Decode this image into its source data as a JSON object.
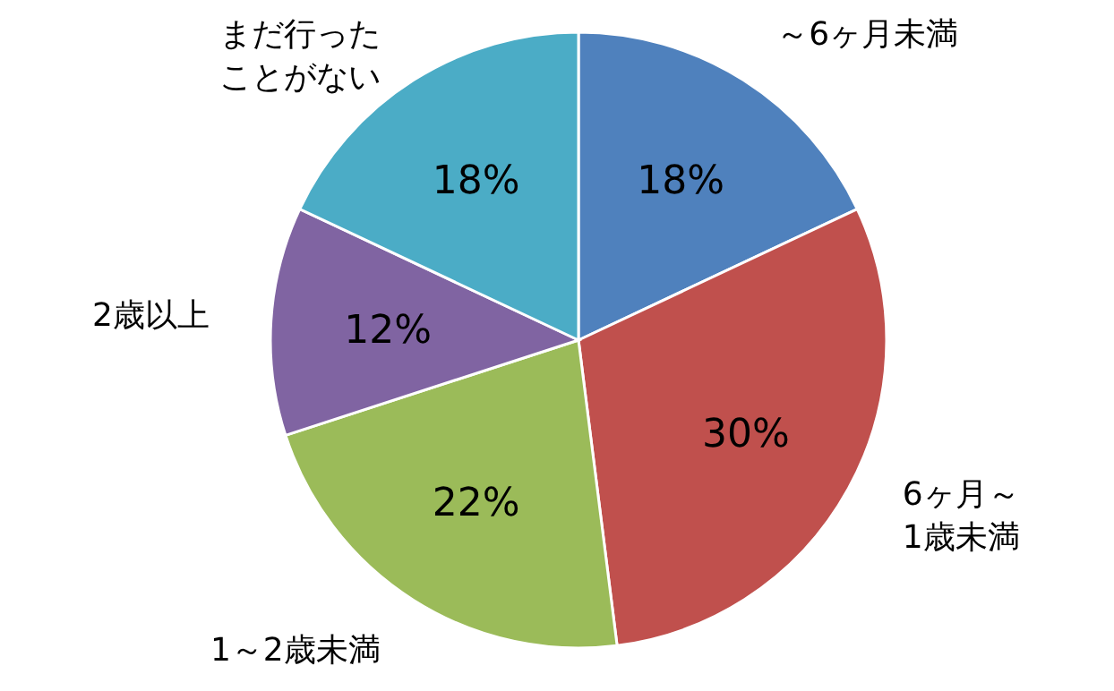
{
  "chart_data": {
    "type": "pie",
    "categories": [
      "～6ヶ月未満",
      "6ヶ月～1歳未満",
      "1～2歳未満",
      "2歳以上",
      "まだ行ったことがない"
    ],
    "values": [
      18,
      30,
      22,
      12,
      18
    ],
    "colors": [
      "#4f81bd",
      "#c0504d",
      "#9bbb59",
      "#8064a2",
      "#4bacc6"
    ],
    "value_labels": [
      "18%",
      "30%",
      "22%",
      "12%",
      "18%"
    ]
  }
}
